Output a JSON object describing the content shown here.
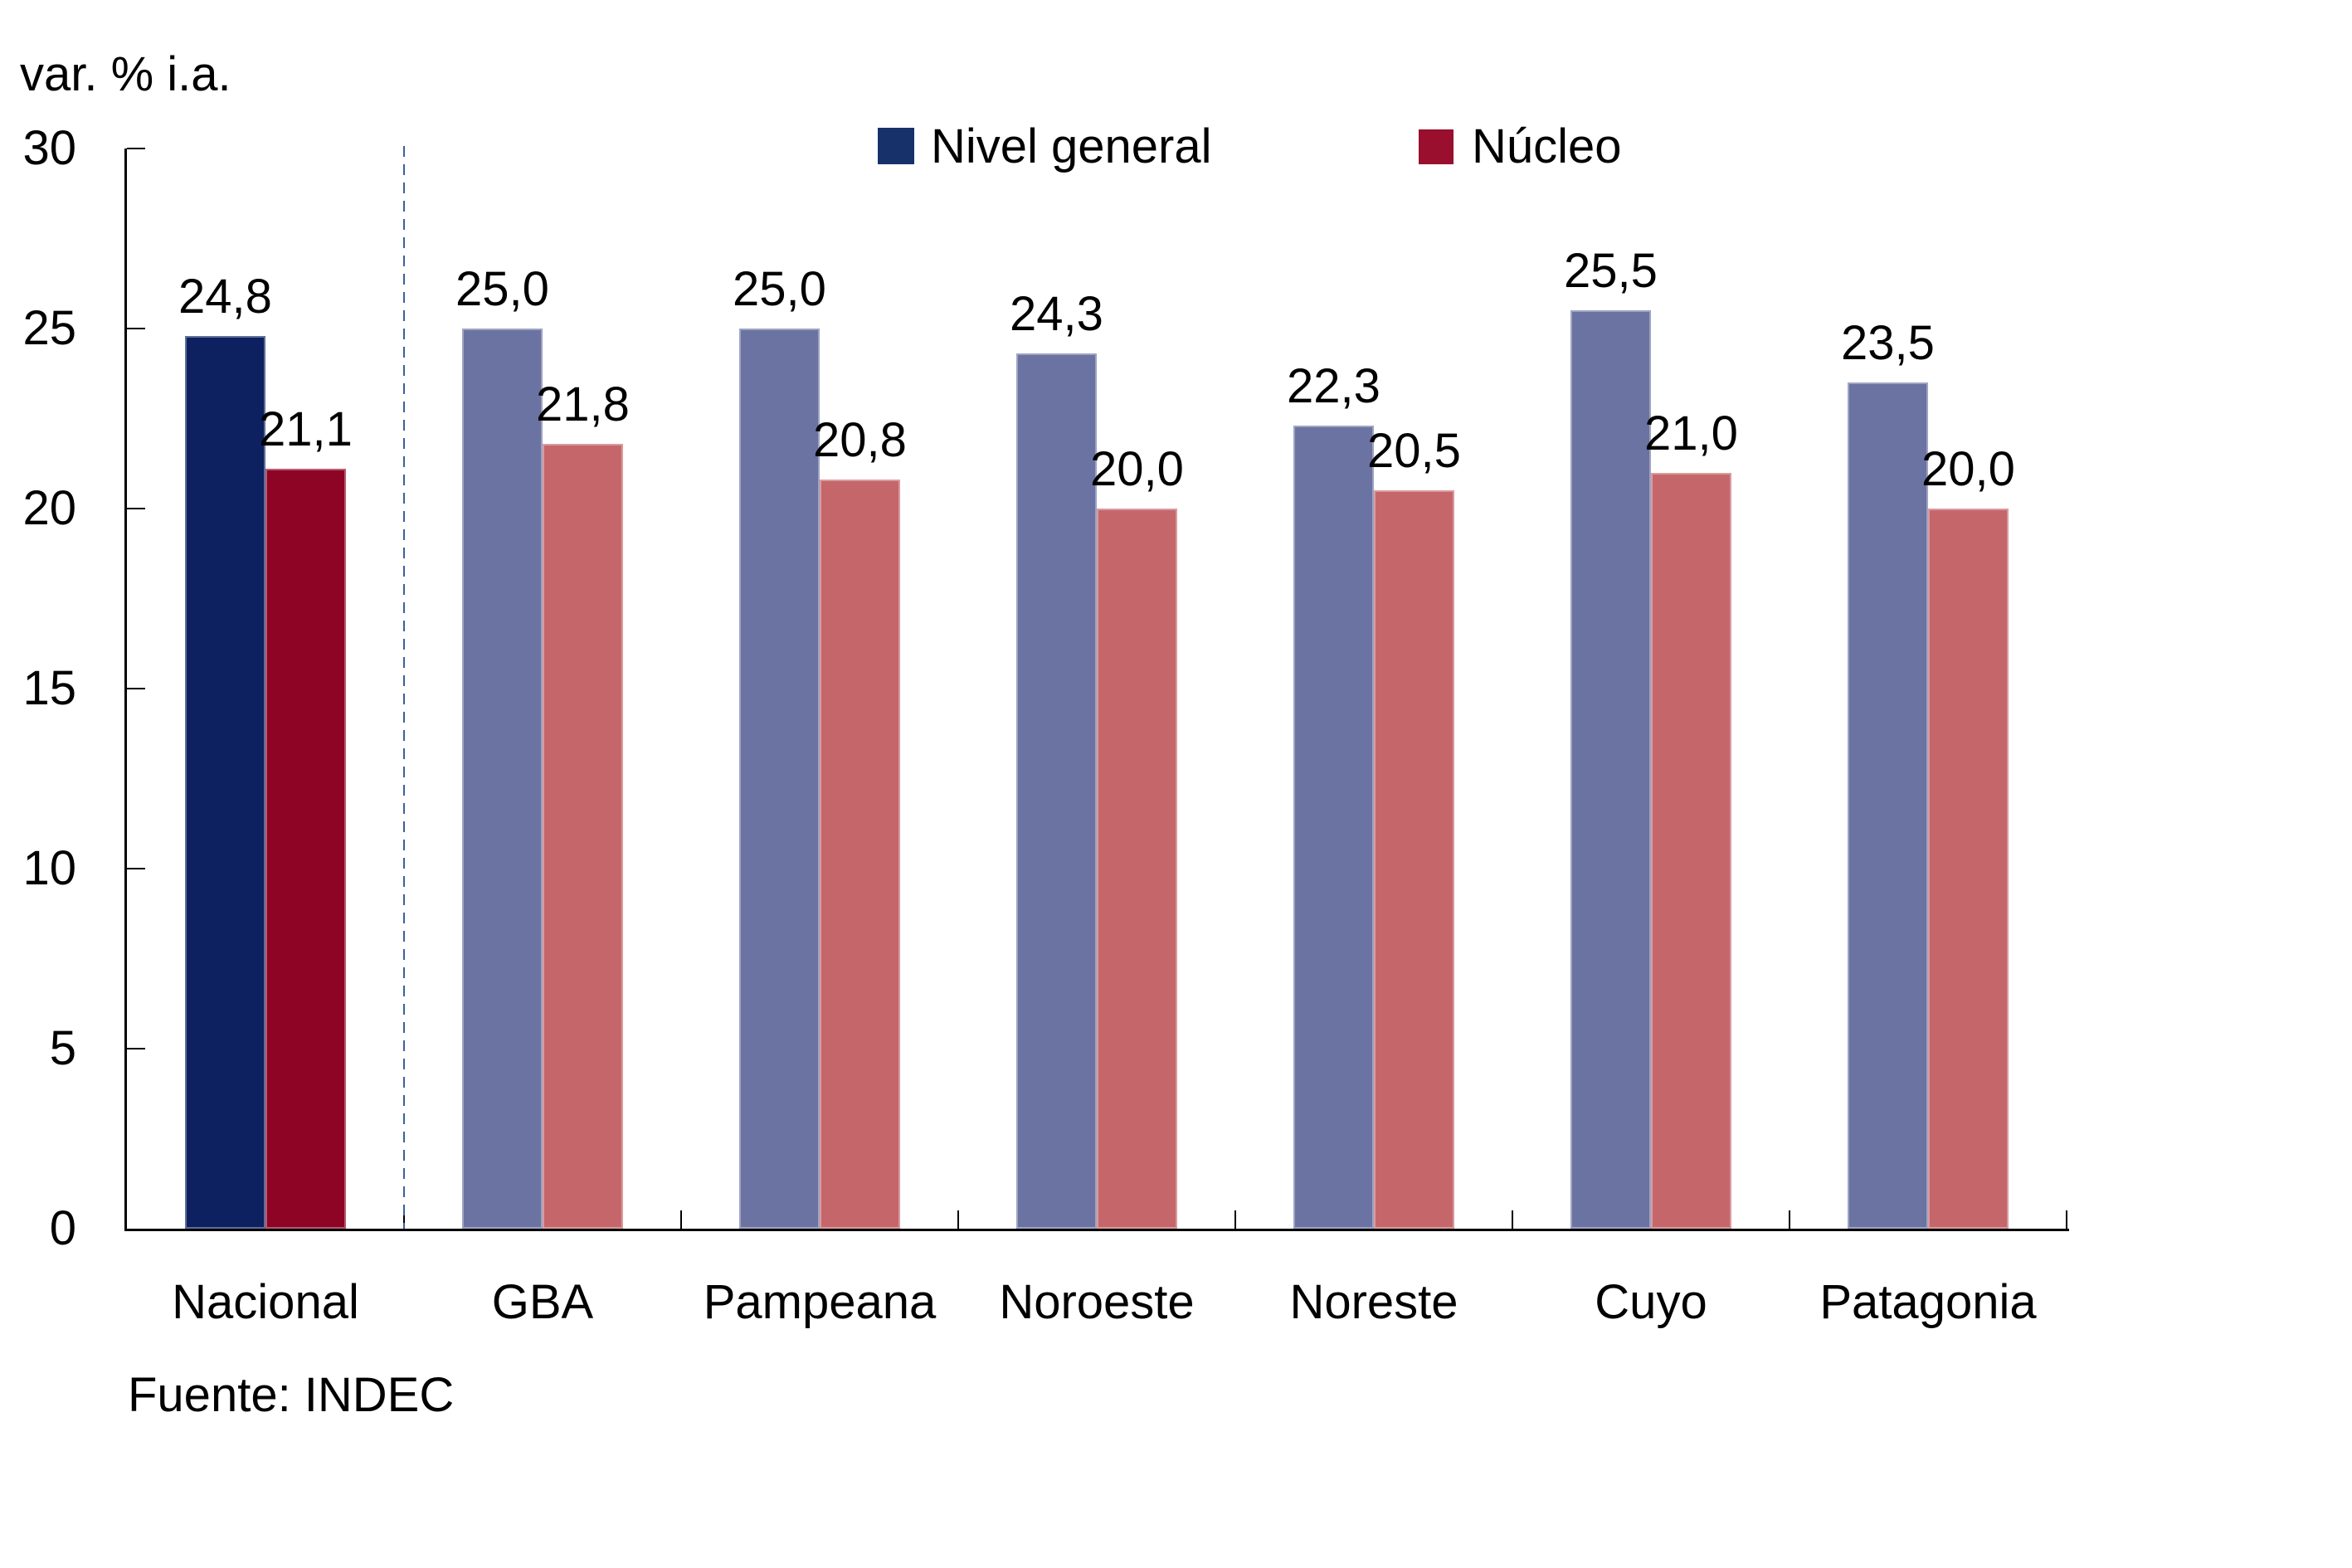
{
  "chart_data": {
    "type": "bar",
    "title": "var. % i.a.",
    "source": "Fuente: INDEC",
    "categories": [
      "Nacional",
      "GBA",
      "Pampeana",
      "Noroeste",
      "Noreste",
      "Cuyo",
      "Patagonia"
    ],
    "series": [
      {
        "name": "Nivel general",
        "values": [
          24.8,
          25.0,
          25.0,
          24.3,
          22.3,
          25.5,
          23.5
        ],
        "labels": [
          "24,8",
          "25,0",
          "25,0",
          "24,3",
          "22,3",
          "25,5",
          "23,5"
        ]
      },
      {
        "name": "Núcleo",
        "values": [
          21.1,
          21.8,
          20.8,
          20.0,
          20.5,
          21.0,
          20.0
        ],
        "labels": [
          "21,1",
          "21,8",
          "20,8",
          "20,0",
          "20,5",
          "21,0",
          "20,0"
        ]
      }
    ],
    "ylim": [
      0,
      30
    ],
    "yticks": [
      0,
      5,
      10,
      15,
      20,
      25,
      30
    ],
    "grid": false,
    "legend_position": "top-center",
    "emphasized_category": "Nacional",
    "separator_after_category": "Nacional",
    "colors": {
      "nivel_general_bar_emphasis": "#0D2161",
      "nivel_general_bar_regional": "#6A73A1",
      "nucleo_bar_emphasis": "#8E0424",
      "nucleo_bar_regional": "#C5666B",
      "legend_nivel_general": "#17316B",
      "legend_nucleo": "#9A0E2E",
      "separator": "#3F5F99",
      "axis": "#000000",
      "text": "#000000"
    }
  }
}
